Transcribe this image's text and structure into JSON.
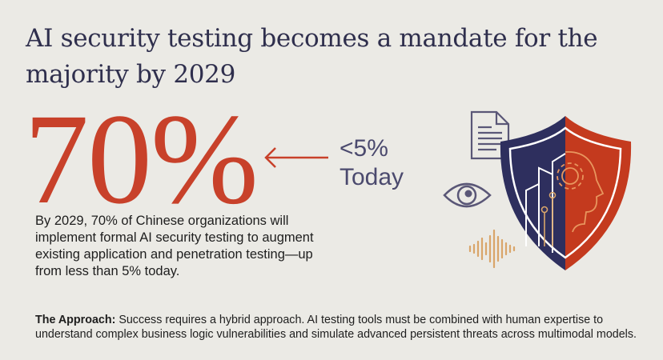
{
  "title": "AI security testing becomes a mandate for the majority by 2029",
  "stat": {
    "value": "70%",
    "comparison_value": "<5%",
    "comparison_label": "Today"
  },
  "description": "By 2029, 70% of Chinese organizations will implement formal AI security testing to augment existing application and penetration testing—up from less than 5% today.",
  "approach": {
    "label": "The Approach:",
    "text": " Success requires a hybrid approach. AI testing tools must be combined with human expertise to understand complex business logic vulnerabilities and simulate advanced persistent threats across multimodal models."
  },
  "icons": [
    "document-icon",
    "eye-icon",
    "audio-waveform-icon",
    "shield-icon",
    "city-circuit-icon",
    "head-gear-icon",
    "arrow-left-icon"
  ],
  "colors": {
    "background": "#ebeae5",
    "accent_red": "#c8412a",
    "navy": "#2e2f5e",
    "muted_purple": "#5a5777",
    "gold": "#d9a56a"
  }
}
